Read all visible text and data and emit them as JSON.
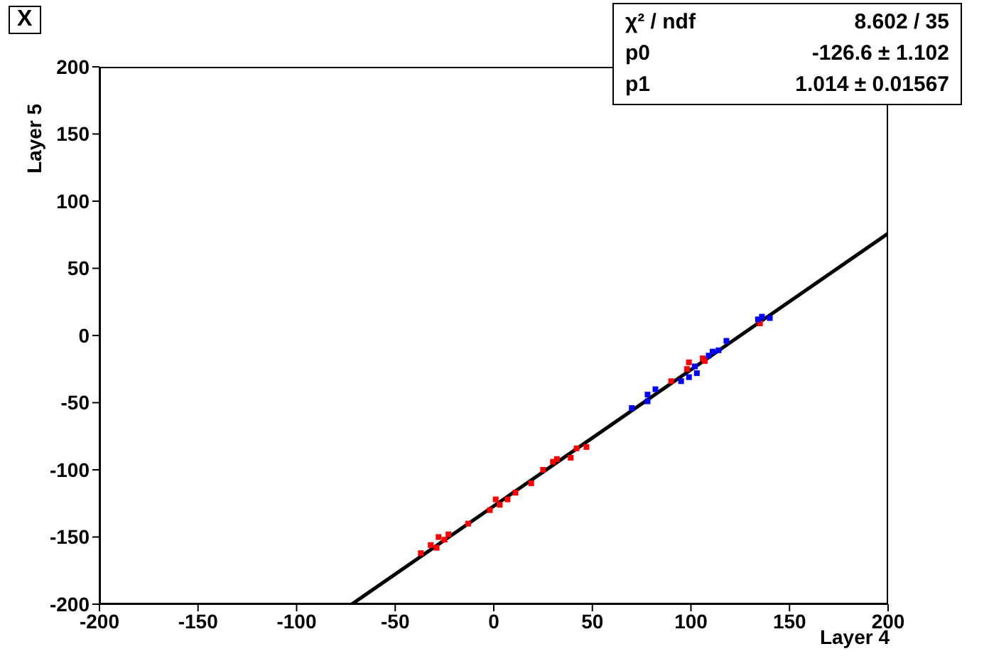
{
  "chart_data": {
    "type": "scatter",
    "title": "X",
    "xlabel": "Layer 4",
    "ylabel": "Layer 5",
    "xlim": [
      -200,
      200
    ],
    "xticks": [
      -200,
      -150,
      -100,
      -50,
      0,
      50,
      100,
      150,
      200
    ],
    "ylim": [
      -200,
      200
    ],
    "yticks": [
      -200,
      -150,
      -100,
      -50,
      0,
      50,
      100,
      150,
      200
    ],
    "line_style": "solid",
    "annotations": [
      "χ² / ndf",
      "8.602 / 35",
      "p0",
      "-126.6 ± 1.102",
      "p1",
      "1.014 ± 0.01567"
    ],
    "series": [
      {
        "color": "#ff0000",
        "marker": "square",
        "x": [
          -37,
          -32,
          -29,
          -28,
          -25,
          -23,
          -13,
          -2,
          1,
          3,
          7,
          11,
          19,
          25,
          30,
          32,
          39,
          42,
          47,
          90,
          98,
          99,
          106,
          107,
          135
        ],
        "values": [
          -162,
          -156,
          -158,
          -150,
          -152,
          -148,
          -140,
          -130,
          -122,
          -126,
          -122,
          -117,
          -110,
          -100,
          -94,
          -92,
          -91,
          -84,
          -83,
          -34,
          -25,
          -20,
          -17,
          -19,
          9
        ]
      },
      {
        "color": "#0000ff",
        "marker": "square",
        "x": [
          70,
          78,
          78,
          82,
          95,
          99,
          103,
          102,
          109,
          111,
          114,
          118,
          134,
          136,
          140
        ],
        "values": [
          -54,
          -49,
          -44,
          -40,
          -34,
          -31,
          -28,
          -23,
          -15,
          -12,
          -11,
          -4,
          12,
          14,
          13
        ]
      },
      {
        "type": "line",
        "color": "#000000",
        "marker": "none",
        "x": [
          -72,
          200
        ],
        "values": [
          -200,
          76
        ]
      }
    ]
  }
}
